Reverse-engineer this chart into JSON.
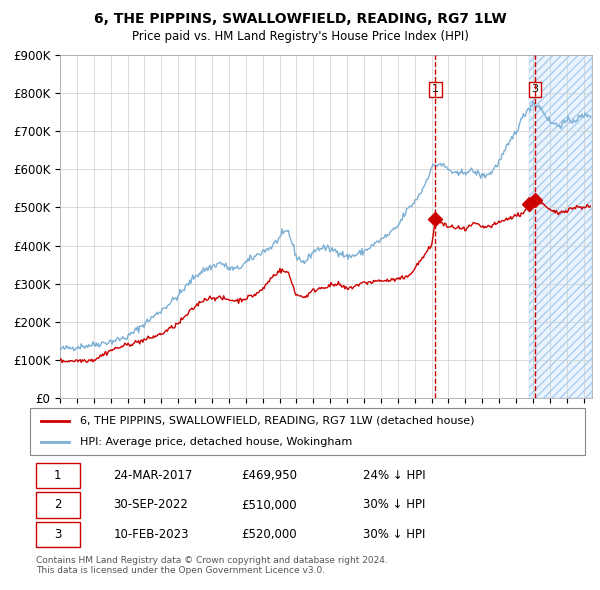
{
  "title": "6, THE PIPPINS, SWALLOWFIELD, READING, RG7 1LW",
  "subtitle": "Price paid vs. HM Land Registry's House Price Index (HPI)",
  "ylim": [
    0,
    900000
  ],
  "xlim_start": 1995.0,
  "xlim_end": 2026.5,
  "ytick_labels": [
    "£0",
    "£100K",
    "£200K",
    "£300K",
    "£400K",
    "£500K",
    "£600K",
    "£700K",
    "£800K",
    "£900K"
  ],
  "ytick_values": [
    0,
    100000,
    200000,
    300000,
    400000,
    500000,
    600000,
    700000,
    800000,
    900000
  ],
  "hpi_color": "#7bafd4",
  "sale_color": "#cc0000",
  "vline_color": "#cc0000",
  "bg_shaded_color": "#ddeeff",
  "grid_color": "#cccccc",
  "sale1_x": 2017.23,
  "sale1_y": 469950,
  "sale2_x": 2022.75,
  "sale2_y": 510000,
  "sale3_x": 2023.12,
  "sale3_y": 520000,
  "vline1_x": 2017.23,
  "vline3_x": 2023.12,
  "hatch_start": 2022.75,
  "hatch_end": 2026.5,
  "legend_entries": [
    "6, THE PIPPINS, SWALLOWFIELD, READING, RG7 1LW (detached house)",
    "HPI: Average price, detached house, Wokingham"
  ],
  "table_rows": [
    [
      "1",
      "24-MAR-2017",
      "£469,950",
      "24% ↓ HPI"
    ],
    [
      "2",
      "30-SEP-2022",
      "£510,000",
      "30% ↓ HPI"
    ],
    [
      "3",
      "10-FEB-2023",
      "£520,000",
      "30% ↓ HPI"
    ]
  ],
  "footnote": "Contains HM Land Registry data © Crown copyright and database right 2024.\nThis data is licensed under the Open Government Licence v3.0."
}
